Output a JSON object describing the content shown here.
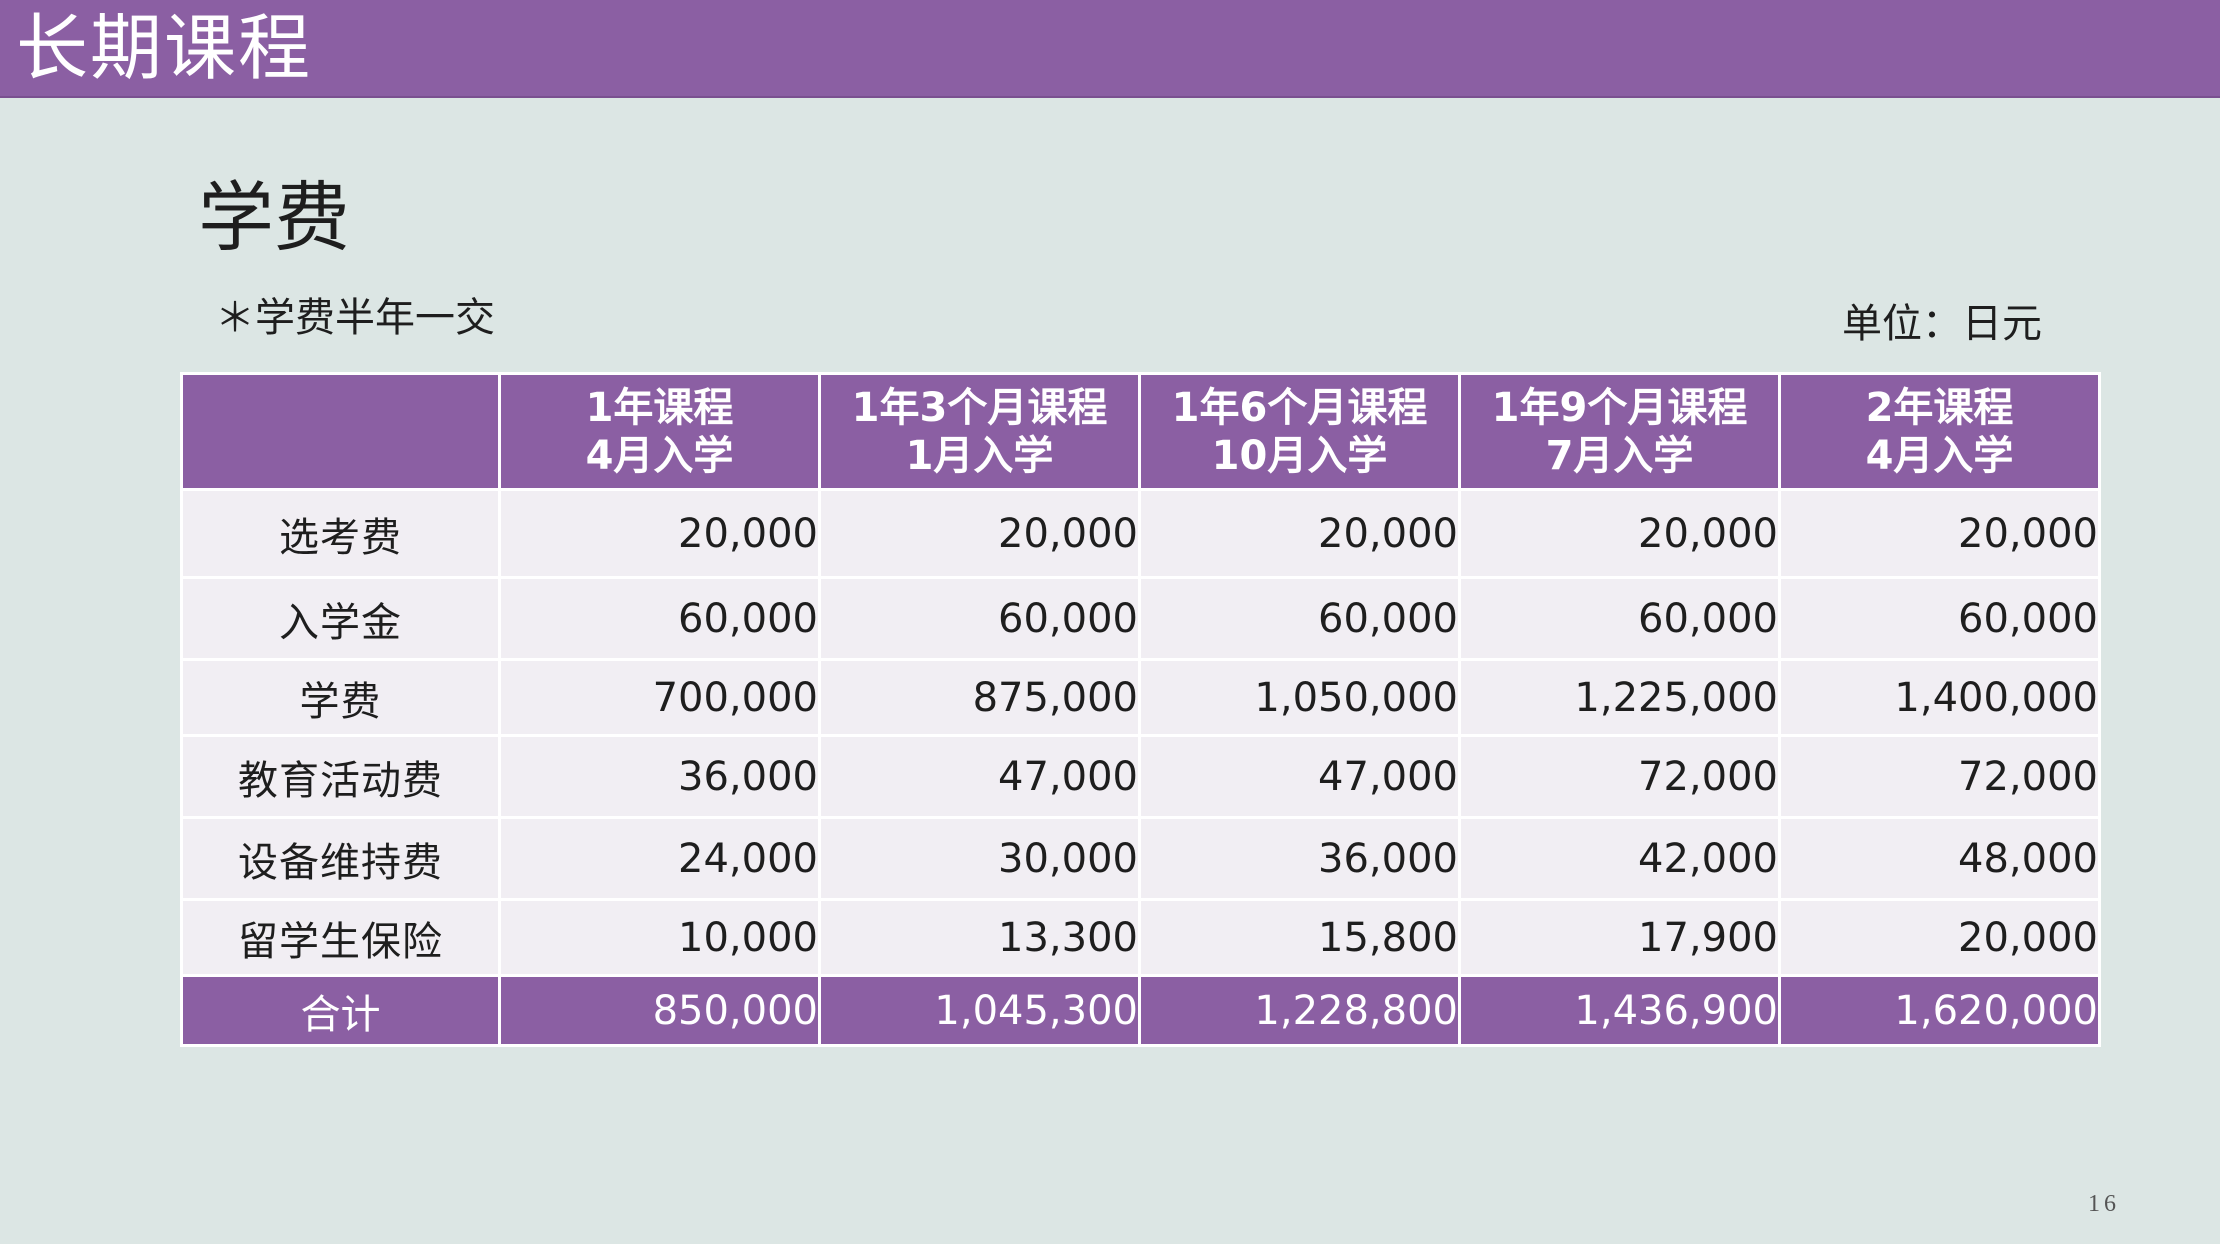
{
  "header": {
    "title": "长期课程"
  },
  "section": {
    "heading": "学费",
    "note": "＊学费半年一交",
    "unit": "单位：日元"
  },
  "table": {
    "columns": [
      {
        "line1": "1年课程",
        "line2": "4月入学"
      },
      {
        "line1": "1年3个月课程",
        "line2": "1月入学"
      },
      {
        "line1": "1年6个月课程",
        "line2": "10月入学"
      },
      {
        "line1": "1年9个月课程",
        "line2": "7月入学"
      },
      {
        "line1": "2年课程",
        "line2": "4月入学"
      }
    ],
    "rows": [
      {
        "label": "选考费",
        "values": [
          "20,000",
          "20,000",
          "20,000",
          "20,000",
          "20,000"
        ]
      },
      {
        "label": "入学金",
        "values": [
          "60,000",
          "60,000",
          "60,000",
          "60,000",
          "60,000"
        ]
      },
      {
        "label": "学费",
        "values": [
          "700,000",
          "875,000",
          "1,050,000",
          "1,225,000",
          "1,400,000"
        ]
      },
      {
        "label": "教育活动费",
        "values": [
          "36,000",
          "47,000",
          "47,000",
          "72,000",
          "72,000"
        ]
      },
      {
        "label": "设备维持费",
        "values": [
          "24,000",
          "30,000",
          "36,000",
          "42,000",
          "48,000"
        ]
      },
      {
        "label": "留学生保险",
        "values": [
          "10,000",
          "13,300",
          "15,800",
          "17,900",
          "20,000"
        ]
      }
    ],
    "total": {
      "label": "合计",
      "values": [
        "850,000",
        "1,045,300",
        "1,228,800",
        "1,436,900",
        "1,620,000"
      ]
    }
  },
  "footer": {
    "page_number": "16"
  },
  "colors": {
    "accent": "#8b5fa3",
    "background": "#dce6e4",
    "row": "#f1eef3"
  }
}
